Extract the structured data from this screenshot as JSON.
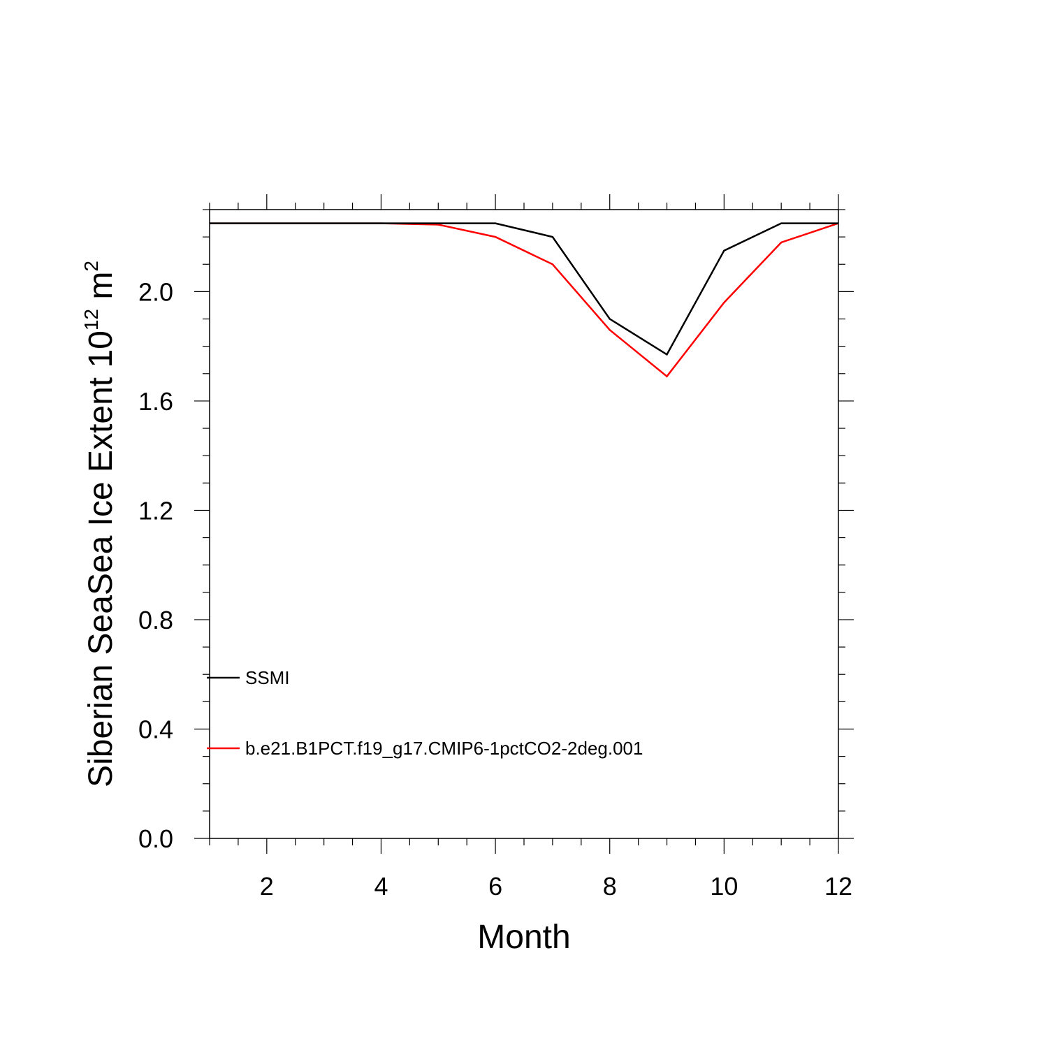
{
  "chart_data": {
    "type": "line",
    "xlabel": "Month",
    "ylabel": {
      "prefix": "Siberian SeaSea Ice Extent 10",
      "superscript1": "12",
      "unit": " m",
      "superscript2": "2"
    },
    "xlim": [
      1,
      12
    ],
    "ylim": [
      0,
      2.3
    ],
    "x_ticks": [
      2,
      4,
      6,
      8,
      10,
      12
    ],
    "y_ticks": [
      0.0,
      0.4,
      0.8,
      1.2,
      1.6,
      2.0
    ],
    "x": [
      1,
      2,
      3,
      4,
      5,
      6,
      7,
      8,
      9,
      10,
      11,
      12
    ],
    "series": [
      {
        "name": "SSMI",
        "color": "#000000",
        "values": [
          2.25,
          2.25,
          2.25,
          2.25,
          2.25,
          2.25,
          2.2,
          1.9,
          1.77,
          2.15,
          2.25,
          2.25
        ]
      },
      {
        "name": "b.e21.B1PCT.f19_g17.CMIP6-1pctCO2-2deg.001",
        "color": "#ff0000",
        "values": [
          2.25,
          2.25,
          2.25,
          2.25,
          2.245,
          2.2,
          2.1,
          1.86,
          1.69,
          1.96,
          2.18,
          2.25
        ]
      }
    ],
    "grid": false,
    "legend_position": "bottom-left"
  }
}
